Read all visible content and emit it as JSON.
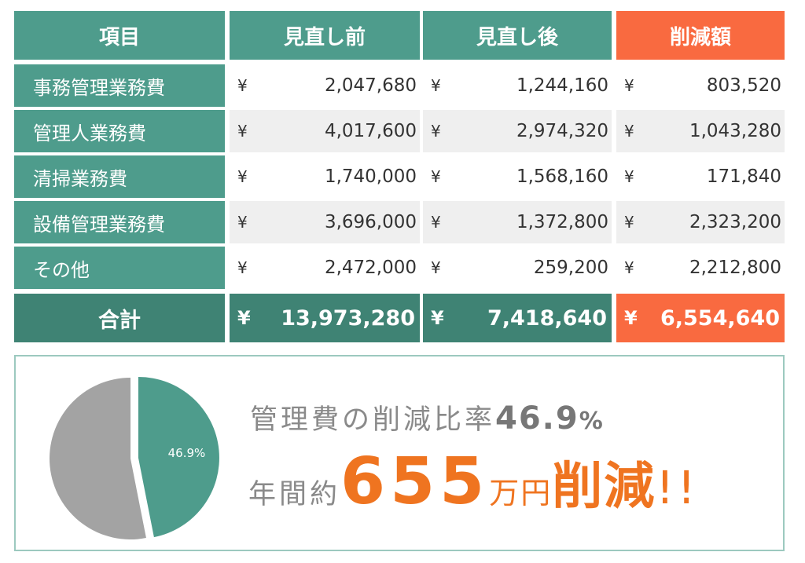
{
  "table": {
    "headers": [
      "項目",
      "見直し前",
      "見直し後",
      "削減額"
    ],
    "currency": "¥",
    "rows": [
      {
        "label": "事務管理業務費",
        "before": "2,047,680",
        "after": "1,244,160",
        "reduction": "803,520"
      },
      {
        "label": "管理人業務費",
        "before": "4,017,600",
        "after": "2,974,320",
        "reduction": "1,043,280"
      },
      {
        "label": "清掃業務費",
        "before": "1,740,000",
        "after": "1,568,160",
        "reduction": "171,840"
      },
      {
        "label": "設備管理業務費",
        "before": "3,696,000",
        "after": "1,372,800",
        "reduction": "2,323,200"
      },
      {
        "label": "その他",
        "before": "2,472,000",
        "after": "259,200",
        "reduction": "2,212,800"
      }
    ],
    "total": {
      "label": "合計",
      "before": "13,973,280",
      "after": "7,418,640",
      "reduction": "6,554,640"
    }
  },
  "summary": {
    "line1_text": "管理費の削減比率",
    "line1_pct": "46.9",
    "line1_pct_symbol": "%",
    "line2_prefix": "年間約",
    "line2_amount": "655",
    "line2_unit": "万円",
    "line2_cut": "削減",
    "line2_bang": "!!"
  },
  "chart_data": {
    "type": "pie",
    "slices": [
      {
        "value": 46.9,
        "label": "46.9%",
        "color": "#4e9c8c",
        "exploded": true
      },
      {
        "value": 53.1,
        "label": "",
        "color": "#a3a3a3",
        "exploded": false
      }
    ]
  },
  "colors": {
    "teal": "#4e9c8c",
    "teal_dark": "#3f8374",
    "orange": "#f96a40",
    "text_orange": "#ef7420",
    "grey": "#a3a3a3"
  }
}
